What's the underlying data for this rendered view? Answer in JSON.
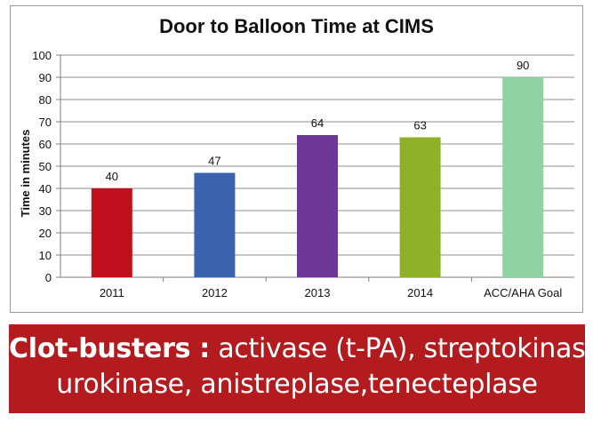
{
  "chart_data": {
    "type": "bar",
    "title": "Door to Balloon Time at CIMS",
    "xlabel": "",
    "ylabel": "Time in minutes",
    "categories": [
      "2011",
      "2012",
      "2013",
      "2014",
      "ACC/AHA Goal"
    ],
    "values": [
      40,
      47,
      64,
      63,
      90
    ],
    "colors": [
      "#c0101e",
      "#3b63ad",
      "#6e3696",
      "#8fb12a",
      "#8ed3a1"
    ],
    "ylim": [
      0,
      100
    ],
    "yticks": [
      "0",
      "10",
      "20",
      "30",
      "40",
      "50",
      "60",
      "70",
      "80",
      "90",
      "100"
    ],
    "grid": true,
    "legend": "none"
  },
  "banner": {
    "bold_label": "Clot-busters :",
    "line1_rest": " activase (t-PA), streptokinase,",
    "line2": "urokinase, anistreplase,tenecteplase",
    "background": "#b31b1e"
  }
}
